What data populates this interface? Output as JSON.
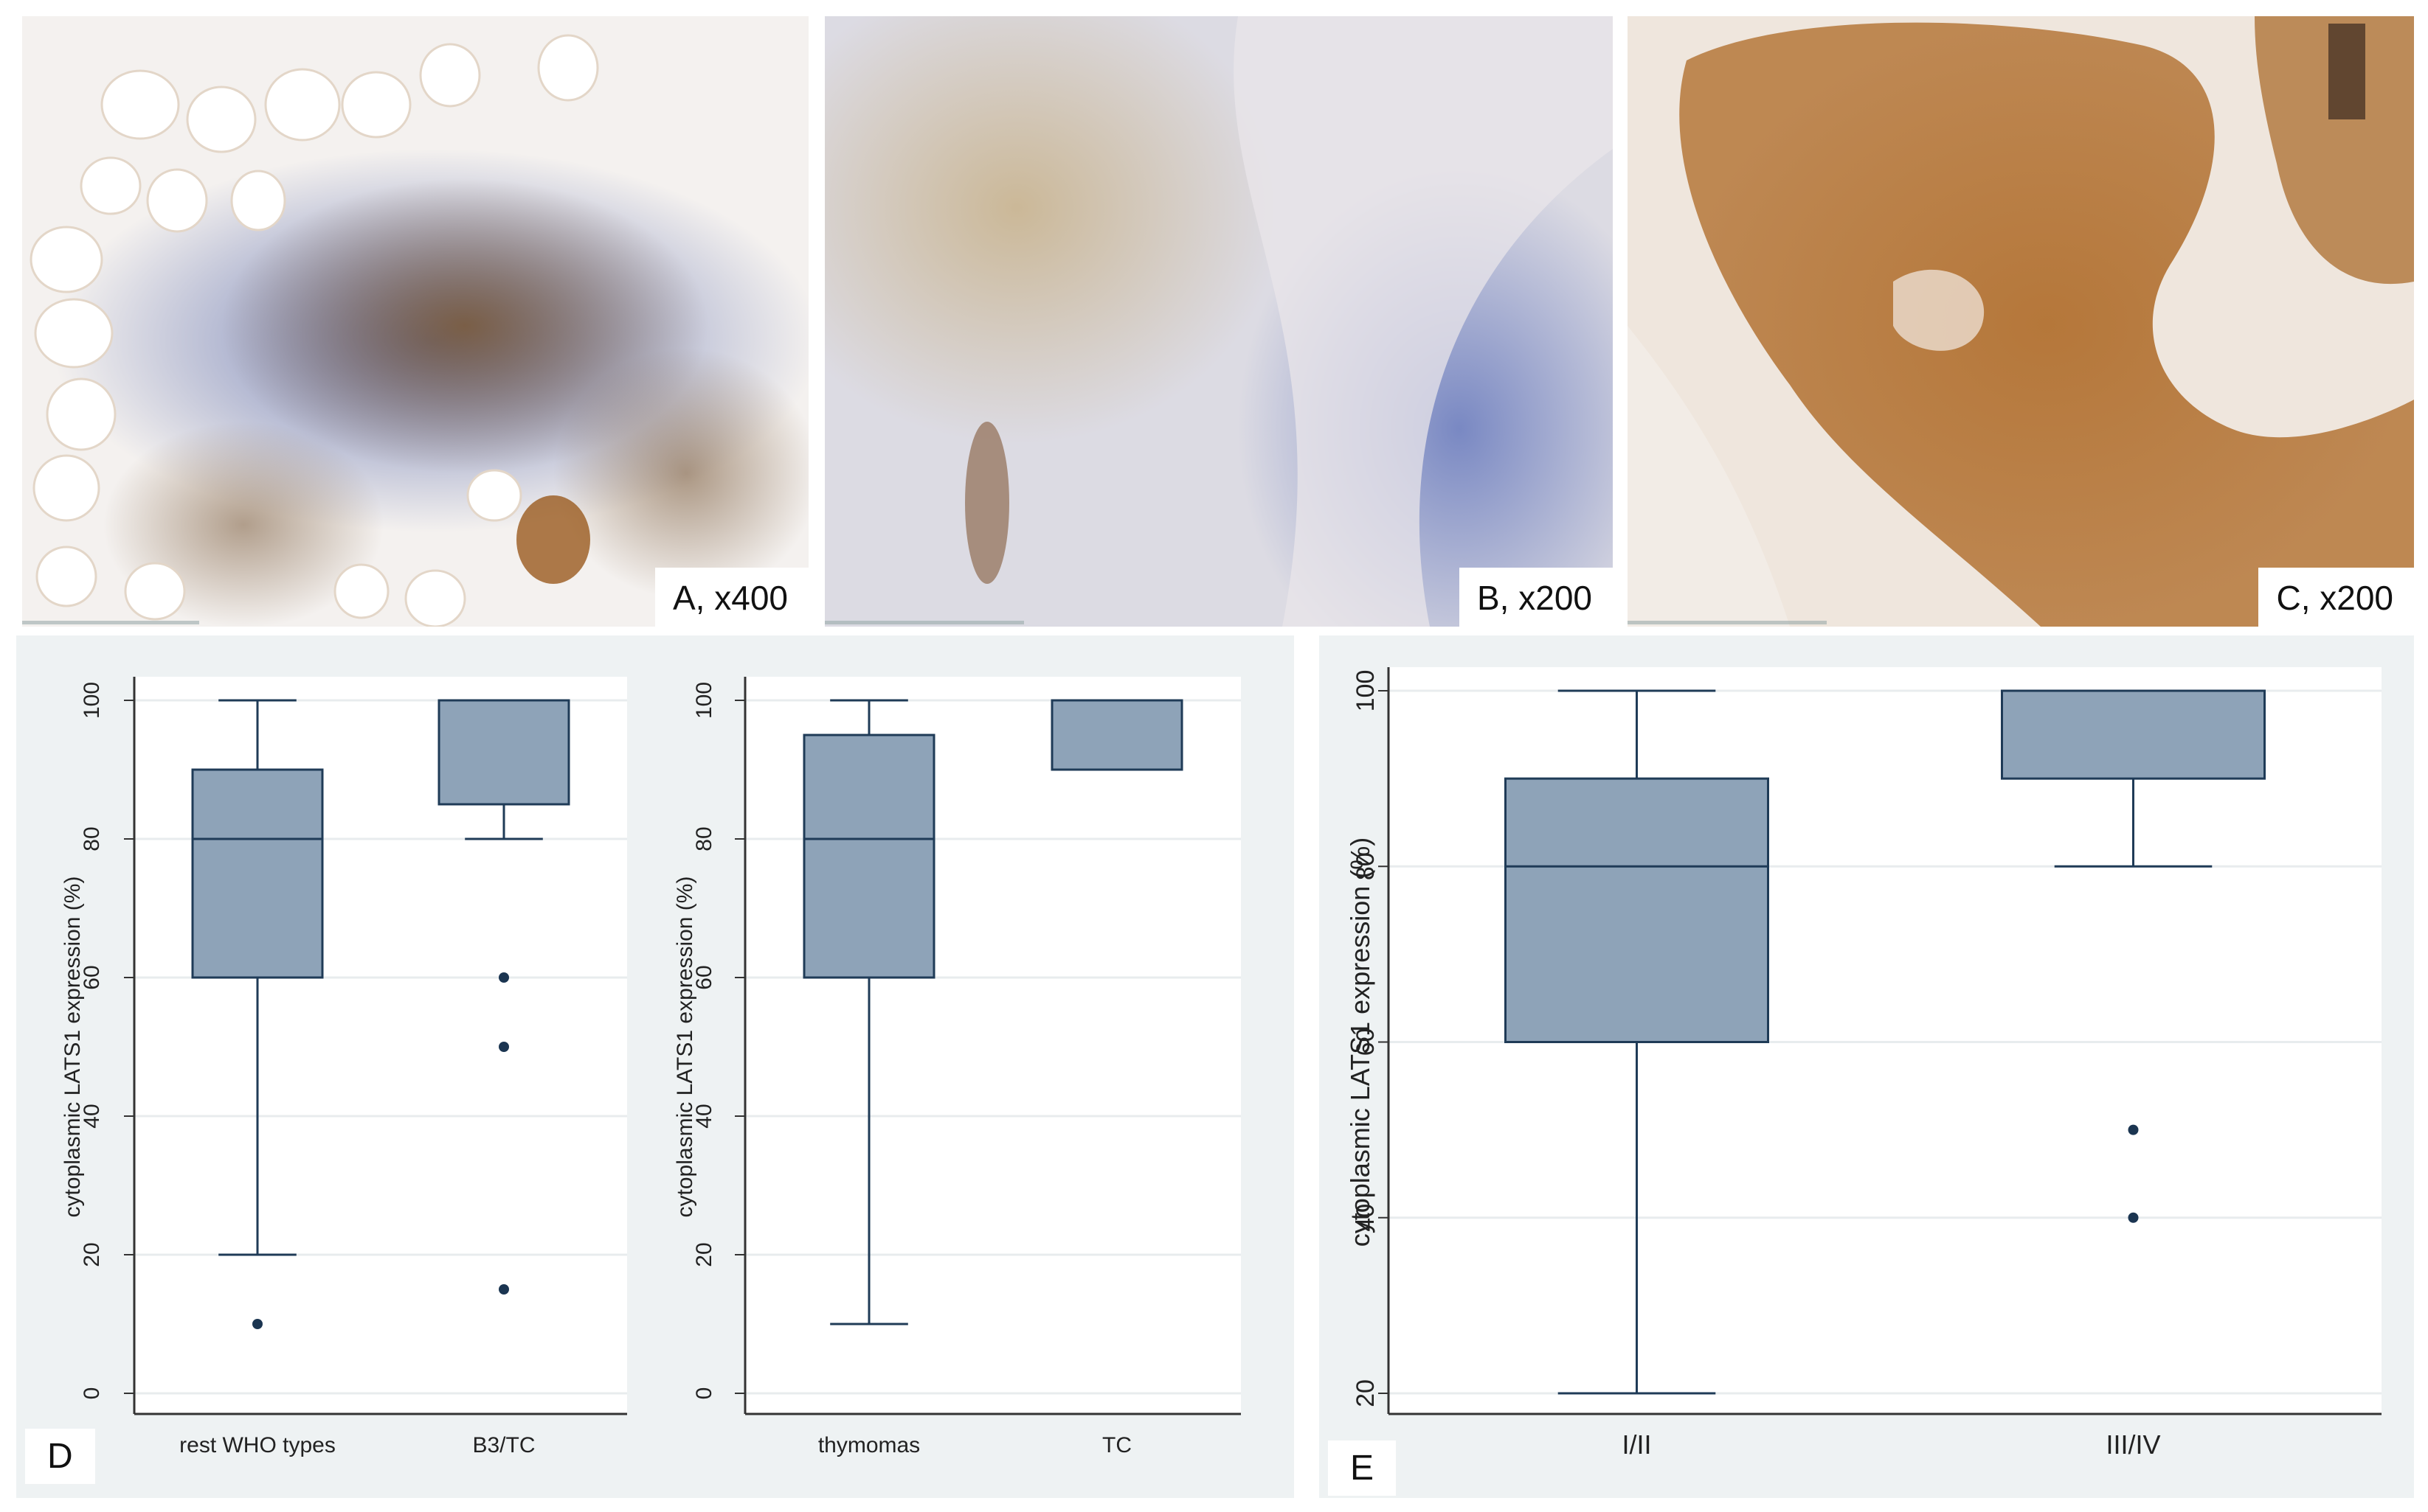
{
  "micrographs": [
    {
      "label": "A, x400"
    },
    {
      "label": "B, x200"
    },
    {
      "label": "C, x200"
    }
  ],
  "panels": {
    "D": {
      "letter": "D"
    },
    "E": {
      "letter": "E"
    }
  },
  "colors": {
    "box_fill": "#8ea3b8",
    "box_stroke": "#1f3b57",
    "outlier": "#1b3551",
    "grid": "#e8ecee",
    "panel_bg": "#eef2f3",
    "tissue_stain_brown": "#b8864a",
    "tissue_stain_blue": "#6f7fb8"
  },
  "chart_data": [
    {
      "type": "box",
      "panel": "D-left",
      "ylabel": "cytoplasmic LATS1 expression (%)",
      "ylim": [
        0,
        100
      ],
      "yticks": [
        0,
        20,
        40,
        60,
        80,
        100
      ],
      "categories": [
        "rest WHO types",
        "B3/TC"
      ],
      "boxes": [
        {
          "category": "rest WHO types",
          "whisker_low": 20,
          "q1": 60,
          "median": 80,
          "q3": 90,
          "whisker_high": 100,
          "outliers": [
            10
          ]
        },
        {
          "category": "B3/TC",
          "whisker_low": 80,
          "q1": 85,
          "median": 100,
          "q3": 100,
          "whisker_high": 100,
          "outliers": [
            60,
            50,
            15
          ]
        }
      ]
    },
    {
      "type": "box",
      "panel": "D-right",
      "ylabel": "cytoplasmic LATS1 expression (%)",
      "ylim": [
        0,
        100
      ],
      "yticks": [
        0,
        20,
        40,
        60,
        80,
        100
      ],
      "categories": [
        "thymomas",
        "TC"
      ],
      "boxes": [
        {
          "category": "thymomas",
          "whisker_low": 10,
          "q1": 60,
          "median": 80,
          "q3": 95,
          "whisker_high": 100,
          "outliers": []
        },
        {
          "category": "TC",
          "whisker_low": 90,
          "q1": 90,
          "median": 100,
          "q3": 100,
          "whisker_high": 100,
          "outliers": []
        }
      ]
    },
    {
      "type": "box",
      "panel": "E",
      "ylabel": "cytoplasmic LATS1 expression (%)",
      "ylim": [
        20,
        100
      ],
      "yticks": [
        20,
        40,
        60,
        80,
        100
      ],
      "categories": [
        "I/II",
        "III/IV"
      ],
      "boxes": [
        {
          "category": "I/II",
          "whisker_low": 20,
          "q1": 60,
          "median": 80,
          "q3": 90,
          "whisker_high": 100,
          "outliers": []
        },
        {
          "category": "III/IV",
          "whisker_low": 80,
          "q1": 90,
          "median": 100,
          "q3": 100,
          "whisker_high": 100,
          "outliers": [
            50,
            40
          ]
        }
      ]
    }
  ]
}
